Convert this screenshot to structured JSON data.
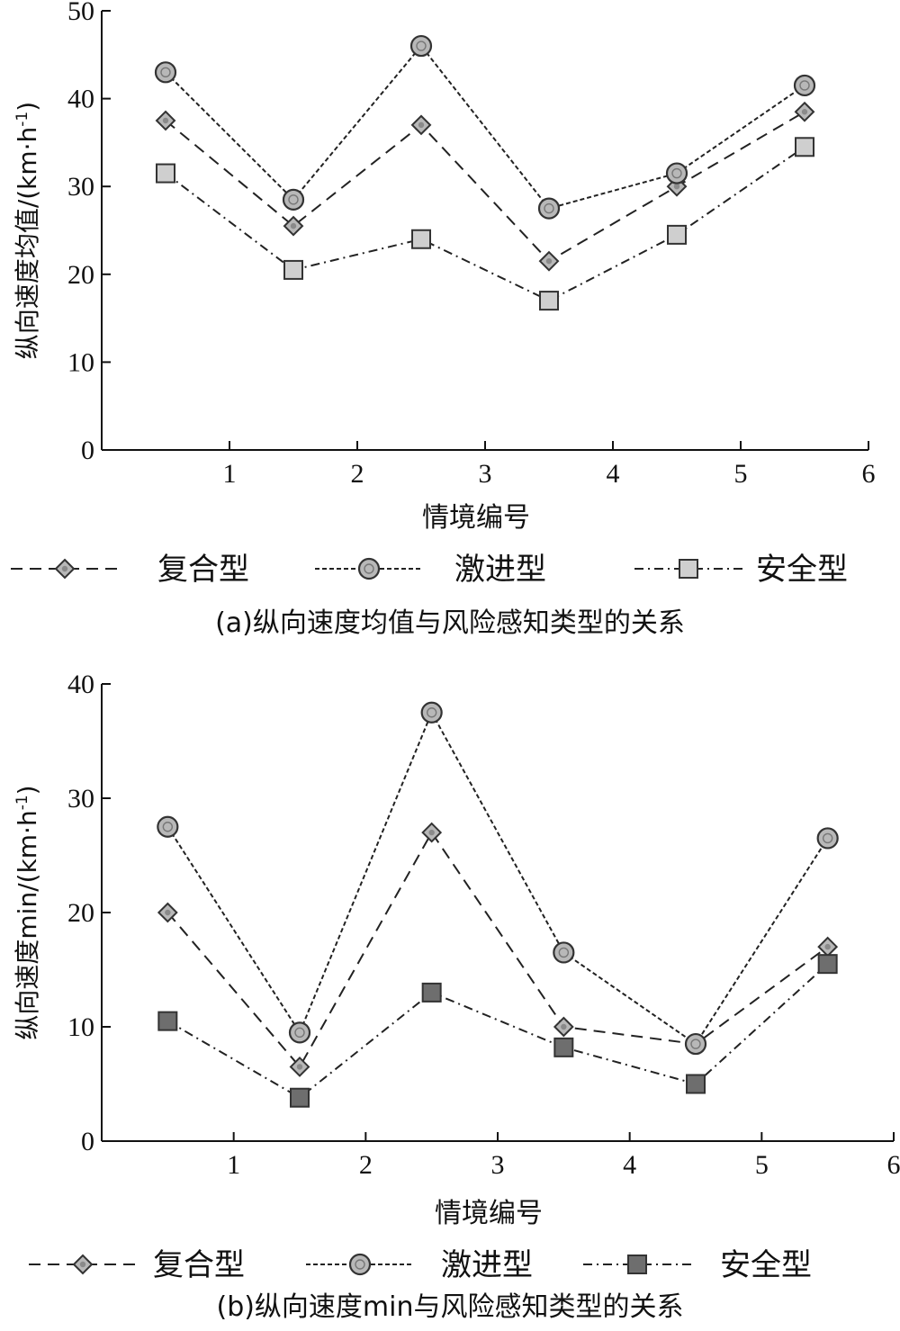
{
  "chart_data": [
    {
      "type": "line",
      "title": "",
      "caption": "(a)纵向速度均值与风险感知类型的关系",
      "xlabel": "情境编号",
      "ylabel": "纵向速度均值/(km·h",
      "ylabel_sup": "-1",
      "ylabel_close": ")",
      "xlim": [
        0,
        6
      ],
      "ylim": [
        0,
        50
      ],
      "xticks": [
        "1",
        "2",
        "3",
        "4",
        "5",
        "6"
      ],
      "yticks": [
        "0",
        "10",
        "20",
        "30",
        "40",
        "50"
      ],
      "x": [
        0.5,
        1.5,
        2.5,
        3.5,
        4.5,
        5.5
      ],
      "series": [
        {
          "name": "复合型",
          "values": [
            37.5,
            25.5,
            37.0,
            21.5,
            30.0,
            38.5
          ],
          "marker": "diamond",
          "dash": "dashed",
          "color": "#b8b8b8"
        },
        {
          "name": "激进型",
          "values": [
            43.0,
            28.5,
            46.0,
            27.5,
            31.5,
            41.5
          ],
          "marker": "circle",
          "dash": "dotted",
          "color": "#b8b8b8"
        },
        {
          "name": "安全型",
          "values": [
            31.5,
            20.5,
            24.0,
            17.0,
            24.5,
            34.5
          ],
          "marker": "square",
          "dash": "dashdot",
          "color": "#cfcfcf"
        }
      ],
      "grid": false,
      "legend_position": "bottom"
    },
    {
      "type": "line",
      "title": "",
      "caption": "(b)纵向速度min与风险感知类型的关系",
      "xlabel": "情境编号",
      "ylabel": "纵向速度min/(km·h",
      "ylabel_sup": "-1",
      "ylabel_close": ")",
      "xlim": [
        0,
        6
      ],
      "ylim": [
        0,
        40
      ],
      "xticks": [
        "1",
        "2",
        "3",
        "4",
        "5",
        "6"
      ],
      "yticks": [
        "0",
        "10",
        "20",
        "30",
        "40"
      ],
      "x": [
        0.5,
        1.5,
        2.5,
        3.5,
        4.5,
        5.5
      ],
      "series": [
        {
          "name": "复合型",
          "values": [
            20.0,
            6.5,
            27.0,
            10.0,
            8.5,
            17.0
          ],
          "marker": "diamond",
          "dash": "dashed",
          "color": "#b8b8b8"
        },
        {
          "name": "激进型",
          "values": [
            27.5,
            9.5,
            37.5,
            16.5,
            8.5,
            26.5
          ],
          "marker": "circle",
          "dash": "dotted",
          "color": "#b8b8b8"
        },
        {
          "name": "安全型",
          "values": [
            10.5,
            3.8,
            13.0,
            8.2,
            5.0,
            15.5
          ],
          "marker": "square",
          "dash": "dashdot",
          "color": "#6e6e6e"
        }
      ],
      "grid": false,
      "legend_position": "bottom"
    }
  ]
}
